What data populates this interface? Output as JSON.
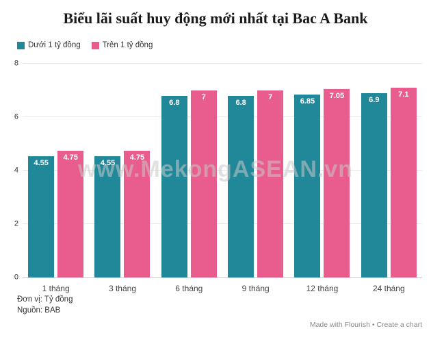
{
  "title": "Biểu lãi suất huy động mới nhất tại Bac A Bank",
  "colors": {
    "series1": "#21889a",
    "series2": "#e85d8d"
  },
  "legend": [
    {
      "label": "Dưới 1 tỷ đồng",
      "color": "#21889a"
    },
    {
      "label": "Trên 1 tỷ đồng",
      "color": "#e85d8d"
    }
  ],
  "chart_data": {
    "type": "bar",
    "title": "Biểu lãi suất huy động mới nhất tại Bac A Bank",
    "categories": [
      "1 tháng",
      "3 tháng",
      "6 tháng",
      "9 tháng",
      "12 tháng",
      "24 tháng"
    ],
    "series": [
      {
        "name": "Dưới 1 tỷ đồng",
        "color": "#21889a",
        "values": [
          4.55,
          4.55,
          6.8,
          6.8,
          6.85,
          6.9
        ]
      },
      {
        "name": "Trên 1 tỷ đồng",
        "color": "#e85d8d",
        "values": [
          4.75,
          4.75,
          7,
          7,
          7.05,
          7.1
        ]
      }
    ],
    "xlabel": "",
    "ylabel": "",
    "ylim": [
      0,
      8
    ],
    "yticks": [
      0,
      2,
      4,
      6,
      8
    ],
    "grid": true,
    "legend_position": "top-left"
  },
  "watermark": "www.MekongASEAN.vn",
  "footer": {
    "unit": "Đơn vị: Tỷ đồng",
    "source": "Nguồn: BAB",
    "credit": "Made with Flourish • Create a chart"
  }
}
